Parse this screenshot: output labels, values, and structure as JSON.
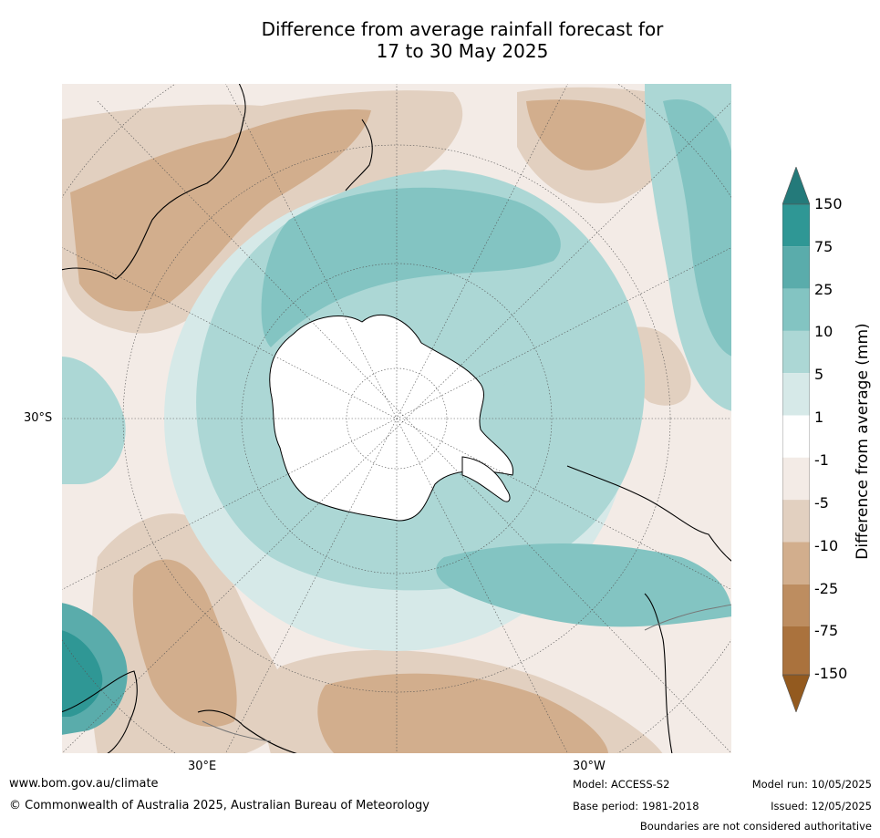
{
  "title_line1": "Difference from average rainfall forecast for",
  "title_line2": "17 to 30 May 2025",
  "map": {
    "projection": "south-polar-stereographic",
    "lat_label": "30°S",
    "lon_labels": [
      "30°E",
      "30°W"
    ],
    "ocean_color": "#ffffff",
    "coast_color": "#000000",
    "border_color": "#777777"
  },
  "colorbar": {
    "title": "Difference from average (mm)",
    "ticks": [
      "150",
      "75",
      "25",
      "10",
      "5",
      "1",
      "-1",
      "-5",
      "-10",
      "-25",
      "-75",
      "-150"
    ],
    "colors": [
      "#247a7a",
      "#2f9795",
      "#5aacab",
      "#83c4c2",
      "#acd7d5",
      "#d6e9e8",
      "#ffffff",
      "#f3ebe6",
      "#e2d0c0",
      "#d2ae8d",
      "#bd8d60",
      "#aa723d",
      "#935a1f"
    ]
  },
  "footer": {
    "url": "www.bom.gov.au/climate",
    "copyright": "© Commonwealth of Australia 2025, Australian Bureau of Meteorology",
    "model": "Model: ACCESS-S2",
    "base_period": "Base period: 1981-2018",
    "model_run": "Model run: 10/05/2025",
    "issued": "Issued: 12/05/2025",
    "disclaimer": "Boundaries are not considered authoritative"
  }
}
